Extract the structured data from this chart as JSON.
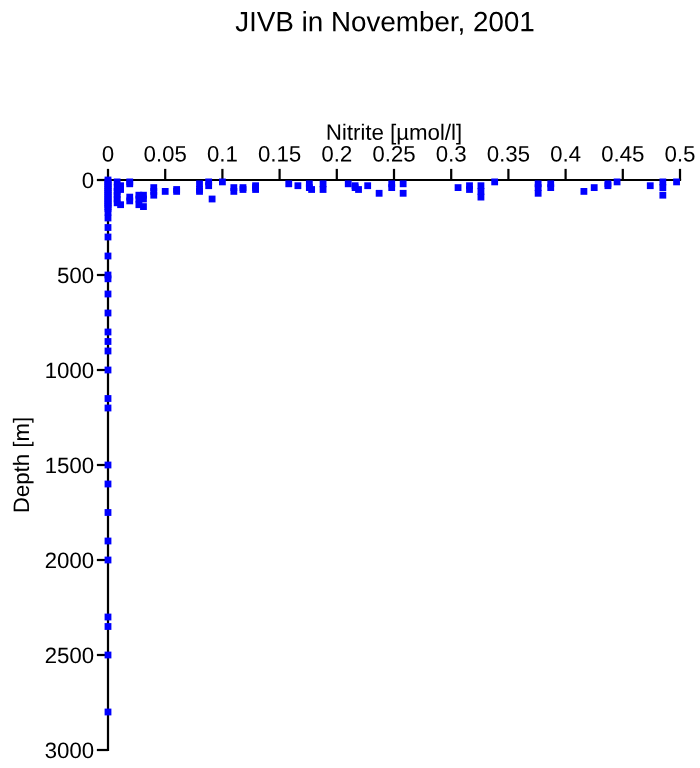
{
  "chart_data": {
    "type": "scatter",
    "title": "JIVB in November, 2001",
    "xlabel": "Nitrite [µmol/l]",
    "ylabel": "Depth [m]",
    "xlim": [
      0,
      0.5
    ],
    "xticks": [
      0,
      0.05,
      0.1,
      0.15,
      0.2,
      0.25,
      0.3,
      0.35,
      0.4,
      0.45,
      0.5
    ],
    "ylim": [
      3000,
      0
    ],
    "yticks": [
      0,
      500,
      1000,
      1500,
      2000,
      2500,
      3000
    ],
    "marker": "square",
    "grid": false,
    "legend": false,
    "series": [
      {
        "color": "#0000ff",
        "x": [
          0,
          0,
          0,
          0,
          0,
          0,
          0,
          0,
          0,
          0,
          0,
          0,
          0,
          0,
          0,
          0,
          0,
          0,
          0,
          0,
          0,
          0,
          0,
          0,
          0,
          0,
          0,
          0,
          0,
          0,
          0,
          0,
          0,
          0,
          0,
          0,
          0,
          0,
          0,
          0,
          0.008,
          0.008,
          0.008,
          0.008,
          0.008,
          0.008,
          0.011,
          0.011,
          0.011,
          0.019,
          0.019,
          0.019,
          0.019,
          0.027,
          0.027,
          0.027,
          0.031,
          0.031,
          0.031,
          0.04,
          0.04,
          0.04,
          0.05,
          0.06,
          0.06,
          0.08,
          0.08,
          0.08,
          0.088,
          0.088,
          0.091,
          0.1,
          0.11,
          0.11,
          0.118,
          0.118,
          0.129,
          0.129,
          0.129,
          0.158,
          0.166,
          0.176,
          0.176,
          0.178,
          0.188,
          0.188,
          0.21,
          0.216,
          0.216,
          0.219,
          0.227,
          0.237,
          0.248,
          0.248,
          0.258,
          0.258,
          0.306,
          0.316,
          0.316,
          0.326,
          0.326,
          0.326,
          0.338,
          0.376,
          0.376,
          0.376,
          0.387,
          0.387,
          0.416,
          0.425,
          0.437,
          0.437,
          0.445,
          0.474,
          0.485,
          0.485,
          0.485,
          0.497
        ],
        "values": [
          0,
          10,
          20,
          30,
          40,
          50,
          60,
          70,
          80,
          90,
          100,
          110,
          120,
          130,
          140,
          150,
          200,
          250,
          300,
          400,
          500,
          520,
          600,
          700,
          800,
          850,
          900,
          1000,
          1150,
          1200,
          1500,
          1600,
          1750,
          1900,
          2000,
          2300,
          2350,
          2500,
          2800,
          170,
          10,
          40,
          60,
          80,
          100,
          120,
          30,
          50,
          130,
          10,
          20,
          90,
          110,
          80,
          100,
          130,
          80,
          100,
          140,
          40,
          60,
          80,
          60,
          50,
          60,
          20,
          50,
          60,
          10,
          30,
          100,
          10,
          40,
          60,
          40,
          50,
          30,
          40,
          50,
          20,
          30,
          20,
          40,
          50,
          20,
          50,
          20,
          30,
          40,
          50,
          30,
          70,
          20,
          40,
          20,
          70,
          40,
          30,
          50,
          30,
          60,
          90,
          10,
          20,
          40,
          70,
          20,
          40,
          60,
          40,
          20,
          30,
          10,
          30,
          10,
          40,
          80,
          10
        ]
      }
    ]
  }
}
